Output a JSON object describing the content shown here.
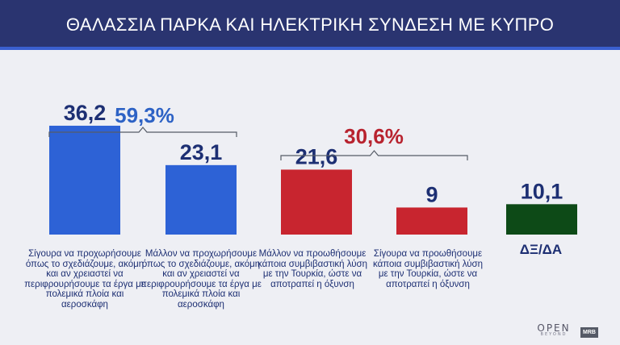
{
  "header": {
    "title": "ΘΑΛΑΣΣΙΑ ΠΑΡΚΑ ΚΑΙ ΗΛΕΚΤΡΙΚΗ ΣΥΝΔΕΣΗ ΜΕ ΚΥΠΡΟ"
  },
  "groups": [
    {
      "label": "59,3%",
      "color": "#2d62c5"
    },
    {
      "label": "30,6%",
      "color": "#b8232f"
    }
  ],
  "chart_data": {
    "type": "bar",
    "title": "ΘΑΛΑΣΣΙΑ ΠΑΡΚΑ ΚΑΙ ΗΛΕΚΤΡΙΚΗ ΣΥΝΔΕΣΗ ΜΕ ΚΥΠΡΟ",
    "xlabel": "",
    "ylabel": "",
    "ylim": [
      0,
      40
    ],
    "grid": false,
    "categories": [
      "Σίγουρα να προχωρήσουμε όπως το σχεδιάζουμε, ακόμη και αν χρειαστεί να περιφρουρήσουμε τα έργα με πολεμικά πλοία και αεροσκάφη",
      "Μάλλον να προχωρήσουμε όπως το σχεδιάζουμε, ακόμη και αν χρειαστεί να περιφρουρήσουμε τα έργα με πολεμικά πλοία και αεροσκάφη",
      "Μάλλον να προωθήσουμε κάποια συμβιβαστική λύση με την Τουρκία, ώστε να αποτραπεί η όξυνση",
      "Σίγουρα να προωθήσουμε κάποια συμβιβαστική λύση με την Τουρκία, ώστε να αποτραπεί η όξυνση",
      "ΔΞ/ΔΑ"
    ],
    "values": [
      36.2,
      23.1,
      21.6,
      9,
      10.1
    ],
    "value_labels": [
      "36,2",
      "23,1",
      "21,6",
      "9",
      "10,1"
    ],
    "colors": [
      "#2d62d6",
      "#2d62d6",
      "#c8252f",
      "#c8252f",
      "#0d4a17"
    ]
  }
}
